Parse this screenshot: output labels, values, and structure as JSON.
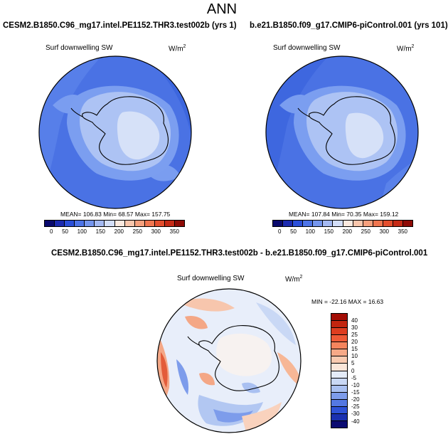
{
  "title": "ANN",
  "panel_left": {
    "case_title": "CESM2.B1850.C96_mg17.intel.PE1152.THR3.test002b (yrs 1)",
    "variable": "Surf downwelling SW",
    "units": "W/m",
    "units_sup": "2",
    "stats": "MEAN= 106.83  Min=  68.57  Max= 157.75"
  },
  "panel_right": {
    "case_title": "b.e21.B1850.f09_g17.CMIP6-piControl.001 (yrs 101)",
    "variable": "Surf downwelling SW",
    "units": "W/m",
    "units_sup": "2",
    "stats": "MEAN= 107.84  Min=  70.35  Max= 159.12"
  },
  "abs_colorbar": {
    "colors": [
      "#0a0a6e",
      "#1c2bb0",
      "#2b4fd9",
      "#4d74e8",
      "#7596ee",
      "#a4b9f2",
      "#d3def8",
      "#fbe9df",
      "#f9c6ac",
      "#f6a07d",
      "#f07650",
      "#e34e2e",
      "#c52a16",
      "#8e0a05"
    ],
    "labels": [
      "0",
      "50",
      "100",
      "150",
      "200",
      "250",
      "300",
      "350"
    ]
  },
  "panel_diff": {
    "case_title": "CESM2.B1850.C96_mg17.intel.PE1152.THR3.test002b - b.e21.B1850.f09_g17.CMIP6-piControl.001",
    "variable": "Surf downwelling SW",
    "units": "W/m",
    "units_sup": "2",
    "stats": "MIN = -22.16 MAX =  16.63"
  },
  "diff_colorbar": {
    "colors": [
      "#a30d05",
      "#c3250f",
      "#de3d20",
      "#ef5a37",
      "#f4845d",
      "#f7a987",
      "#f9cab0",
      "#fbe6d9",
      "#e4ebf8",
      "#c9d8f5",
      "#a9c0f1",
      "#7d9ceb",
      "#5478e2",
      "#2e52d6",
      "#1a30b0",
      "#0b0b72"
    ],
    "labels": [
      "40",
      "30",
      "25",
      "20",
      "15",
      "10",
      "5",
      "0",
      "-5",
      "-10",
      "-15",
      "-20",
      "-25",
      "-30",
      "-40"
    ]
  }
}
